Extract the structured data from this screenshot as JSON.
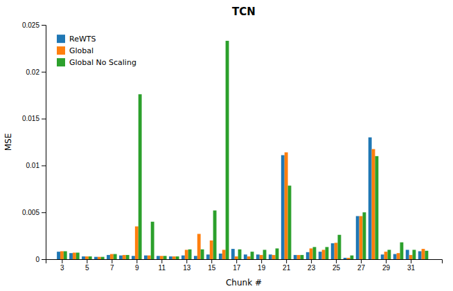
{
  "chart_data": {
    "type": "bar",
    "title": "TCN",
    "x_label": "Chunk #",
    "y_label": "MSE",
    "x": [
      3,
      4,
      5,
      6,
      7,
      8,
      9,
      10,
      11,
      12,
      13,
      14,
      15,
      16,
      17,
      18,
      19,
      20,
      21,
      22,
      23,
      24,
      25,
      26,
      27,
      28,
      29,
      30,
      31,
      32
    ],
    "series": [
      {
        "name": "ReWTS",
        "values": [
          0.0008,
          0.00065,
          0.0003,
          0.00025,
          0.00045,
          0.0004,
          0.00035,
          0.0004,
          0.00035,
          0.0003,
          0.0004,
          0.00035,
          0.0005,
          0.0006,
          0.0011,
          0.0005,
          0.0005,
          0.0005,
          0.0111,
          0.00045,
          0.00075,
          0.0008,
          0.0017,
          0.00015,
          0.0046,
          0.013,
          0.0005,
          0.00055,
          0.001,
          0.00085
        ]
      },
      {
        "name": "Global",
        "values": [
          0.00085,
          0.0007,
          0.0003,
          0.00025,
          0.00055,
          0.00045,
          0.0035,
          0.0004,
          0.00035,
          0.0003,
          0.001,
          0.0027,
          0.002,
          0.001,
          0.0003,
          0.0003,
          0.00045,
          0.00045,
          0.0114,
          0.00045,
          0.00115,
          0.001,
          0.00175,
          0.00015,
          0.0046,
          0.01175,
          0.0008,
          0.00065,
          0.00045,
          0.0011
        ]
      },
      {
        "name": "Global No Scaling",
        "values": [
          0.00085,
          0.0007,
          0.0003,
          0.00025,
          0.00055,
          0.00045,
          0.0176,
          0.004,
          0.00035,
          0.0003,
          0.00105,
          0.00105,
          0.0052,
          0.0233,
          0.00105,
          0.0008,
          0.001,
          0.00115,
          0.00785,
          0.00045,
          0.0013,
          0.0013,
          0.0026,
          0.0004,
          0.005,
          0.011,
          0.001,
          0.0018,
          0.001,
          0.0009
        ]
      }
    ],
    "xlim": [
      1.7,
      33.5
    ],
    "xticks": [
      3,
      5,
      7,
      9,
      11,
      13,
      15,
      17,
      19,
      21,
      23,
      25,
      27,
      29,
      31
    ],
    "ylim": [
      0,
      0.025
    ],
    "yticks": [
      0,
      0.005,
      0.01,
      0.015,
      0.02,
      0.025
    ],
    "grid": false,
    "legend": "upper left"
  }
}
